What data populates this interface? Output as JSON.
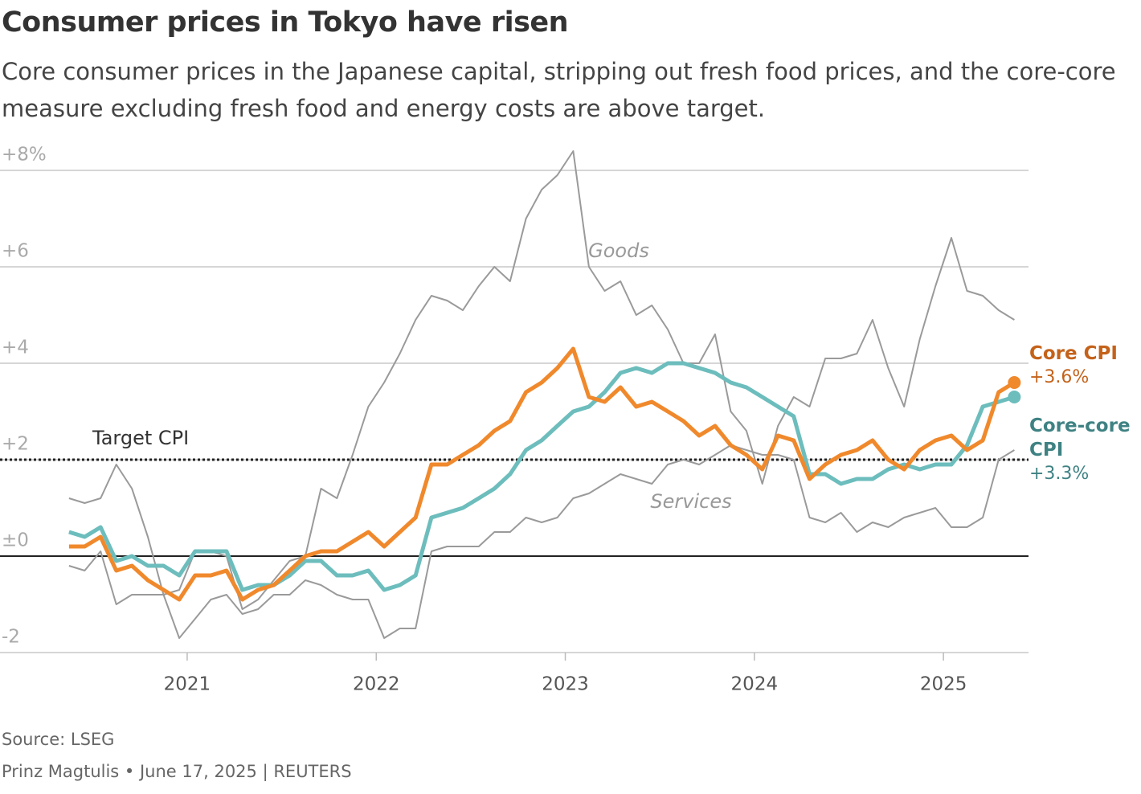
{
  "chart_data": {
    "type": "line",
    "title": "Consumer prices in Tokyo have risen",
    "subtitle": "Core consumer prices in the Japanese capital, stripping out fresh food prices, and the core-core measure excluding fresh food and energy costs are above target.",
    "source": "Source: LSEG",
    "credit": "Prinz Magtulis • June 17, 2025 | REUTERS",
    "x": [
      2020.375,
      2020.458,
      2020.542,
      2020.625,
      2020.708,
      2020.792,
      2020.875,
      2020.958,
      2021.042,
      2021.125,
      2021.208,
      2021.292,
      2021.375,
      2021.458,
      2021.542,
      2021.625,
      2021.708,
      2021.792,
      2021.875,
      2021.958,
      2022.042,
      2022.125,
      2022.208,
      2022.292,
      2022.375,
      2022.458,
      2022.542,
      2022.625,
      2022.708,
      2022.792,
      2022.875,
      2022.958,
      2023.042,
      2023.125,
      2023.208,
      2023.292,
      2023.375,
      2023.458,
      2023.542,
      2023.625,
      2023.708,
      2023.792,
      2023.875,
      2023.958,
      2024.042,
      2024.125,
      2024.208,
      2024.292,
      2024.375,
      2024.458,
      2024.542,
      2024.625,
      2024.708,
      2024.792,
      2024.875,
      2024.958,
      2025.042,
      2025.125,
      2025.208,
      2025.292,
      2025.375
    ],
    "series": [
      {
        "name": "Goods",
        "color": "#9a9a9a",
        "width": 2,
        "label_style": "annotation",
        "values": [
          1.2,
          1.1,
          1.2,
          1.9,
          1.4,
          0.4,
          -0.8,
          -0.7,
          0.1,
          0.1,
          0,
          -1.1,
          -0.9,
          -0.5,
          -0.1,
          0,
          1.4,
          1.2,
          2.1,
          3.1,
          3.6,
          4.2,
          4.9,
          5.4,
          5.3,
          5.1,
          5.6,
          6.0,
          5.7,
          7.0,
          7.6,
          7.9,
          8.4,
          6.0,
          5.5,
          5.7,
          5.0,
          5.2,
          4.7,
          4.0,
          4.0,
          4.6,
          3.0,
          2.6,
          1.5,
          2.7,
          3.3,
          3.1,
          4.1,
          4.1,
          4.2,
          4.9,
          3.9,
          3.1,
          4.5,
          5.6,
          6.6,
          5.5,
          5.4,
          5.1,
          4.9
        ]
      },
      {
        "name": "Services",
        "color": "#9a9a9a",
        "width": 2,
        "label_style": "annotation",
        "values": [
          -0.2,
          -0.3,
          0.1,
          -1.0,
          -0.8,
          -0.8,
          -0.8,
          -1.7,
          -1.3,
          -0.9,
          -0.8,
          -1.2,
          -1.1,
          -0.8,
          -0.8,
          -0.5,
          -0.6,
          -0.8,
          -0.9,
          -0.9,
          -1.7,
          -1.5,
          -1.5,
          0.1,
          0.2,
          0.2,
          0.2,
          0.5,
          0.5,
          0.8,
          0.7,
          0.8,
          1.2,
          1.3,
          1.5,
          1.7,
          1.6,
          1.5,
          1.9,
          2.0,
          1.9,
          2.1,
          2.3,
          2.2,
          2.1,
          2.1,
          2.0,
          0.8,
          0.7,
          0.9,
          0.5,
          0.7,
          0.6,
          0.8,
          0.9,
          1.0,
          0.6,
          0.6,
          0.8,
          2.0,
          2.2
        ]
      },
      {
        "name": "Core-core CPI",
        "color": "#6dbdbd",
        "label_color": "#3f8283",
        "width": 5,
        "label_style": "end",
        "values": [
          0.5,
          0.4,
          0.6,
          -0.1,
          0.0,
          -0.2,
          -0.2,
          -0.4,
          0.1,
          0.1,
          0.1,
          -0.7,
          -0.6,
          -0.6,
          -0.4,
          -0.1,
          -0.1,
          -0.4,
          -0.4,
          -0.3,
          -0.7,
          -0.6,
          -0.4,
          0.8,
          0.9,
          1.0,
          1.2,
          1.4,
          1.7,
          2.2,
          2.4,
          2.7,
          3.0,
          3.1,
          3.4,
          3.8,
          3.9,
          3.8,
          4.0,
          4.0,
          3.9,
          3.8,
          3.6,
          3.5,
          3.3,
          3.1,
          2.9,
          1.7,
          1.7,
          1.5,
          1.6,
          1.6,
          1.8,
          1.9,
          1.8,
          1.9,
          1.9,
          2.3,
          3.1,
          3.2,
          3.3
        ],
        "value_labels": [
          null,
          null,
          null,
          null,
          null,
          null,
          null,
          null,
          null,
          null,
          null,
          null,
          null,
          null,
          null,
          null,
          null,
          null,
          null,
          null,
          null,
          null,
          null,
          null,
          null,
          null,
          null,
          null,
          null,
          null,
          null,
          null,
          null,
          null,
          null,
          null,
          null,
          null,
          null,
          null,
          null,
          null,
          null,
          null,
          null,
          null,
          null,
          null,
          null,
          null,
          null,
          null,
          null,
          null,
          null,
          null,
          null,
          null,
          null,
          null,
          "+3.3%"
        ]
      },
      {
        "name": "Core CPI",
        "color": "#f0892c",
        "label_color": "#c4621a",
        "width": 5,
        "label_style": "end",
        "values": [
          0.2,
          0.2,
          0.4,
          -0.3,
          -0.2,
          -0.5,
          -0.7,
          -0.9,
          -0.4,
          -0.4,
          -0.3,
          -0.9,
          -0.7,
          -0.6,
          -0.3,
          0,
          0.1,
          0.1,
          0.3,
          0.5,
          0.2,
          0.5,
          0.8,
          1.9,
          1.9,
          2.1,
          2.3,
          2.6,
          2.8,
          3.4,
          3.6,
          3.9,
          4.3,
          3.3,
          3.2,
          3.5,
          3.1,
          3.2,
          3.0,
          2.8,
          2.5,
          2.7,
          2.3,
          2.1,
          1.8,
          2.5,
          2.4,
          1.6,
          1.9,
          2.1,
          2.2,
          2.4,
          2.0,
          1.8,
          2.2,
          2.4,
          2.5,
          2.2,
          2.4,
          3.4,
          3.6
        ],
        "value_labels": [
          null,
          null,
          null,
          null,
          null,
          null,
          null,
          null,
          null,
          null,
          null,
          null,
          null,
          null,
          null,
          null,
          null,
          null,
          null,
          null,
          null,
          null,
          null,
          null,
          null,
          null,
          null,
          null,
          null,
          null,
          null,
          null,
          null,
          null,
          null,
          null,
          null,
          null,
          null,
          null,
          null,
          null,
          null,
          null,
          null,
          null,
          null,
          null,
          null,
          null,
          null,
          null,
          null,
          null,
          null,
          null,
          null,
          null,
          null,
          null,
          "+3.6%"
        ]
      }
    ],
    "target": {
      "label": "Target CPI",
      "value": 2
    },
    "xlim": [
      2020.01,
      2025.45
    ],
    "xticks": [
      2021,
      2022,
      2023,
      2024,
      2025
    ],
    "ylim": [
      -2,
      8
    ],
    "yticks": [
      {
        "value": -2,
        "label": "-2"
      },
      {
        "value": 0,
        "label": "±0"
      },
      {
        "value": 2,
        "label": "+2"
      },
      {
        "value": 4,
        "label": "+4"
      },
      {
        "value": 6,
        "label": "+6"
      },
      {
        "value": 8,
        "label": "+8%"
      }
    ],
    "grid": true
  }
}
